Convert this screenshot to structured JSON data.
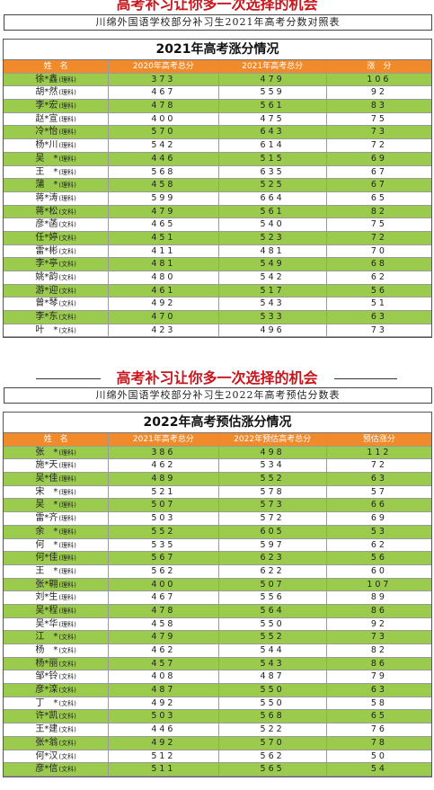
{
  "section2021": {
    "banner": "高考补习让你多一次选择的机会",
    "subtitle": "川绵外国语学校部分补习生2021年高考分数对照表",
    "table_title": "2021年高考涨分情况",
    "headers": [
      "姓　名",
      "2020年高考总分",
      "2021年高考总分",
      "涨　分"
    ],
    "rows": [
      {
        "name": "徐*鑫",
        "track": "(理科)",
        "a": "373",
        "b": "479",
        "c": "106"
      },
      {
        "name": "胡*然",
        "track": "(理科)",
        "a": "467",
        "b": "559",
        "c": "92"
      },
      {
        "name": "李*宏",
        "track": "(理科)",
        "a": "478",
        "b": "561",
        "c": "83"
      },
      {
        "name": "赵*宣",
        "track": "(理科)",
        "a": "400",
        "b": "475",
        "c": "75"
      },
      {
        "name": "冷*怡",
        "track": "(理科)",
        "a": "570",
        "b": "643",
        "c": "73"
      },
      {
        "name": "杨*川",
        "track": "(理科)",
        "a": "542",
        "b": "614",
        "c": "72"
      },
      {
        "name": "吴　*",
        "track": "(理科)",
        "a": "446",
        "b": "515",
        "c": "69"
      },
      {
        "name": "王　*",
        "track": "(理科)",
        "a": "568",
        "b": "635",
        "c": "67"
      },
      {
        "name": "蒲　*",
        "track": "(理科)",
        "a": "458",
        "b": "525",
        "c": "67"
      },
      {
        "name": "蒋*涛",
        "track": "(理科)",
        "a": "599",
        "b": "664",
        "c": "65"
      },
      {
        "name": "蒋*松",
        "track": "(文科)",
        "a": "479",
        "b": "561",
        "c": "82"
      },
      {
        "name": "彦*菡",
        "track": "(文科)",
        "a": "465",
        "b": "540",
        "c": "75"
      },
      {
        "name": "任*婷",
        "track": "(文科)",
        "a": "451",
        "b": "523",
        "c": "72"
      },
      {
        "name": "雷*彬",
        "track": "(文科)",
        "a": "411",
        "b": "481",
        "c": "70"
      },
      {
        "name": "李*亭",
        "track": "(文科)",
        "a": "481",
        "b": "549",
        "c": "68"
      },
      {
        "name": "姚*韵",
        "track": "(文科)",
        "a": "480",
        "b": "542",
        "c": "62"
      },
      {
        "name": "游*迎",
        "track": "(文科)",
        "a": "461",
        "b": "517",
        "c": "56"
      },
      {
        "name": "曾*琴",
        "track": "(文科)",
        "a": "492",
        "b": "543",
        "c": "51"
      },
      {
        "name": "李*东",
        "track": "(文科)",
        "a": "470",
        "b": "533",
        "c": "63"
      },
      {
        "name": "叶　*",
        "track": "(文科)",
        "a": "423",
        "b": "496",
        "c": "73"
      }
    ]
  },
  "section2022": {
    "banner": "高考补习让你多一次选择的机会",
    "subtitle": "川绵外国语学校部分补习生2022年高考预估分数表",
    "table_title": "2022年高考预估涨分情况",
    "headers": [
      "姓　名",
      "2021年高考总分",
      "2022年预估高考总分",
      "预估涨分"
    ],
    "rows": [
      {
        "name": "张　*",
        "track": "(理科)",
        "a": "386",
        "b": "498",
        "c": "112"
      },
      {
        "name": "施*天",
        "track": "(理科)",
        "a": "462",
        "b": "534",
        "c": "72"
      },
      {
        "name": "吴*佳",
        "track": "(理科)",
        "a": "489",
        "b": "552",
        "c": "63"
      },
      {
        "name": "宋　*",
        "track": "(理科)",
        "a": "521",
        "b": "578",
        "c": "57"
      },
      {
        "name": "吴　*",
        "track": "(理科)",
        "a": "507",
        "b": "573",
        "c": "66"
      },
      {
        "name": "雷*齐",
        "track": "(理科)",
        "a": "503",
        "b": "572",
        "c": "69"
      },
      {
        "name": "余　*",
        "track": "(理科)",
        "a": "552",
        "b": "605",
        "c": "53"
      },
      {
        "name": "何　*",
        "track": "(理科)",
        "a": "535",
        "b": "597",
        "c": "62"
      },
      {
        "name": "何*佳",
        "track": "(理科)",
        "a": "567",
        "b": "623",
        "c": "56"
      },
      {
        "name": "王　*",
        "track": "(理科)",
        "a": "562",
        "b": "622",
        "c": "60"
      },
      {
        "name": "张*翱",
        "track": "(理科)",
        "a": "400",
        "b": "507",
        "c": "107"
      },
      {
        "name": "刘*生",
        "track": "(理科)",
        "a": "467",
        "b": "556",
        "c": "89"
      },
      {
        "name": "吴*程",
        "track": "(理科)",
        "a": "478",
        "b": "564",
        "c": "86"
      },
      {
        "name": "吴*华",
        "track": "(理科)",
        "a": "458",
        "b": "550",
        "c": "92"
      },
      {
        "name": "江　*",
        "track": "(文科)",
        "a": "479",
        "b": "552",
        "c": "73"
      },
      {
        "name": "杨　*",
        "track": "(文科)",
        "a": "462",
        "b": "544",
        "c": "82"
      },
      {
        "name": "杨*丽",
        "track": "(文科)",
        "a": "457",
        "b": "543",
        "c": "86"
      },
      {
        "name": "邹*铃",
        "track": "(文科)",
        "a": "408",
        "b": "487",
        "c": "79"
      },
      {
        "name": "彦*滦",
        "track": "(文科)",
        "a": "487",
        "b": "550",
        "c": "63"
      },
      {
        "name": "丁　*",
        "track": "(文科)",
        "a": "492",
        "b": "550",
        "c": "58"
      },
      {
        "name": "许*凯",
        "track": "(文科)",
        "a": "503",
        "b": "568",
        "c": "65"
      },
      {
        "name": "王*建",
        "track": "(文科)",
        "a": "446",
        "b": "522",
        "c": "76"
      },
      {
        "name": "张*翁",
        "track": "(文科)",
        "a": "492",
        "b": "570",
        "c": "78"
      },
      {
        "name": "何*汉",
        "track": "(文科)",
        "a": "512",
        "b": "562",
        "c": "50"
      },
      {
        "name": "彦*信",
        "track": "(文科)",
        "a": "511",
        "b": "565",
        "c": "54"
      }
    ]
  },
  "colors": {
    "banner_red": "#c8161d",
    "header_orange": "#f08a2a",
    "row_green": "#9bcb4d"
  }
}
